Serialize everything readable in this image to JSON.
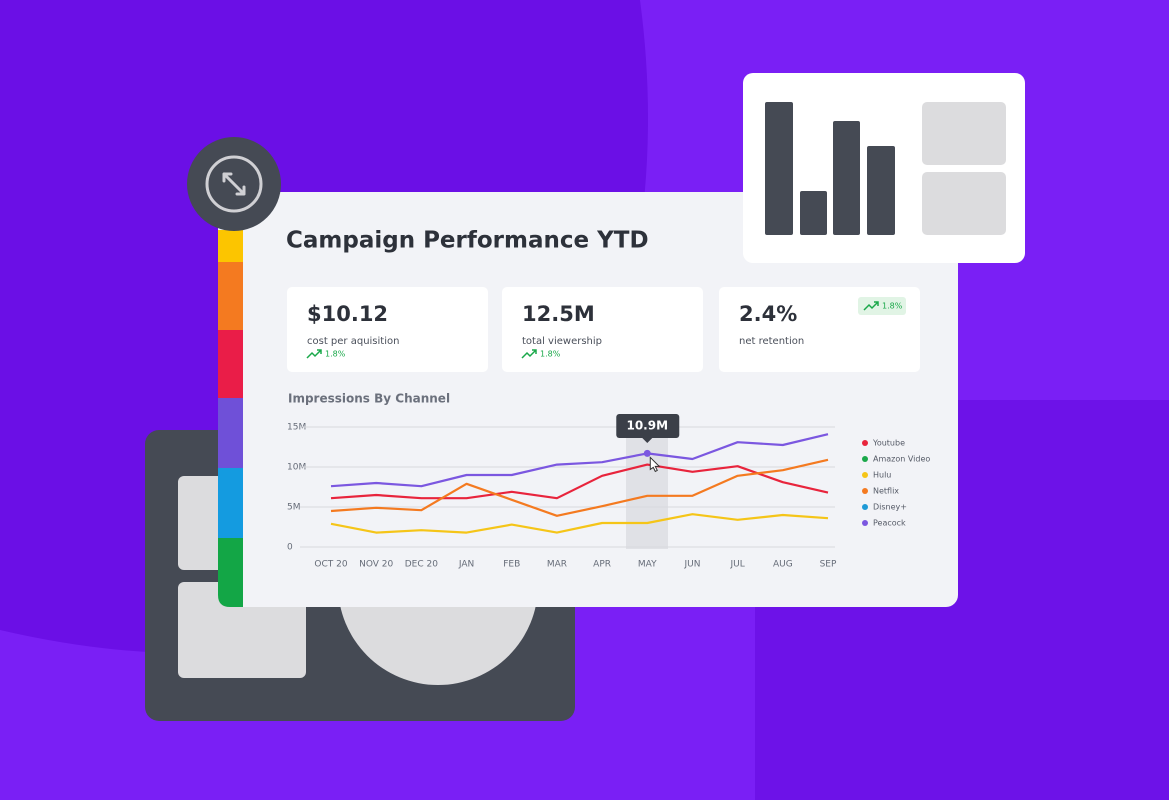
{
  "header": {
    "title": "Campaign Performance YTD"
  },
  "kpis": [
    {
      "value": "$10.12",
      "label": "cost per aquisition",
      "change": "1.8%"
    },
    {
      "value": "12.5M",
      "label": "total viewership",
      "change": "1.8%"
    },
    {
      "value": "2.4%",
      "label": "net retention",
      "change": "1.8%"
    }
  ],
  "chart_data": {
    "type": "line",
    "title": "Impressions By Channel",
    "categories": [
      "OCT 20",
      "NOV 20",
      "DEC 20",
      "JAN",
      "FEB",
      "MAR",
      "APR",
      "MAY",
      "JUN",
      "JUL",
      "AUG",
      "SEP"
    ],
    "ylim": [
      0,
      15
    ],
    "yticks": [
      0,
      {
        "value": 5,
        "label": "5M"
      },
      {
        "value": 10,
        "label": "10M"
      },
      {
        "value": 15,
        "label": "15M"
      }
    ],
    "grid": true,
    "tooltip": "10.9M",
    "series": [
      {
        "name": "Youtube",
        "color": "#e8243c",
        "values": [
          6.1,
          6.5,
          6.1,
          6.1,
          6.9,
          6.1,
          8.9,
          10.3,
          9.4,
          10.1,
          8.1,
          6.8
        ]
      },
      {
        "name": "Amazon Video",
        "color": "#1aa84a",
        "values": [
          null,
          null,
          null,
          null,
          null,
          null,
          null,
          null,
          null,
          null,
          null,
          null
        ]
      },
      {
        "name": "Hulu",
        "color": "#f5c518",
        "values": [
          2.9,
          1.8,
          2.1,
          1.8,
          2.8,
          1.8,
          3.0,
          3.0,
          4.1,
          3.4,
          4.0,
          3.6
        ]
      },
      {
        "name": "Netflix",
        "color": "#f47a20",
        "values": [
          4.5,
          4.9,
          4.6,
          7.9,
          5.9,
          3.9,
          5.1,
          6.4,
          6.4,
          8.9,
          9.6,
          10.9
        ]
      },
      {
        "name": "Disney+",
        "color": "#1e9ad6",
        "values": [
          null,
          null,
          null,
          null,
          null,
          null,
          null,
          null,
          null,
          null,
          null,
          null
        ]
      },
      {
        "name": "Peacock",
        "color": "#7b57e0",
        "values": [
          7.6,
          8.0,
          7.6,
          9.0,
          9.0,
          10.3,
          10.6,
          11.7,
          11.0,
          13.1,
          12.75,
          14.1
        ]
      }
    ]
  }
}
